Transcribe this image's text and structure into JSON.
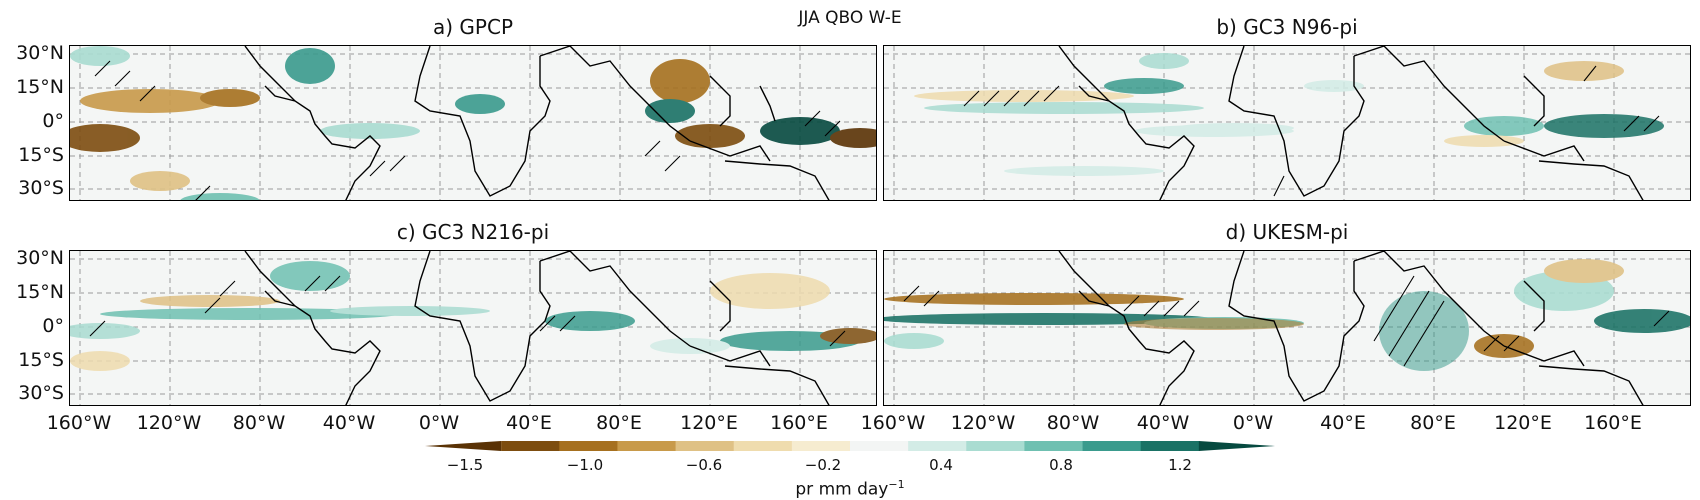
{
  "figure": {
    "suptitle": "JJA QBO W-E",
    "panels": [
      {
        "id": "a",
        "title": "a) GPCP"
      },
      {
        "id": "b",
        "title": "b) GC3 N96-pi"
      },
      {
        "id": "c",
        "title": "c) GC3 N216-pi"
      },
      {
        "id": "d",
        "title": "d) UKESM-pi"
      }
    ],
    "lat_labels": [
      "30°N",
      "15°N",
      "0°",
      "15°S",
      "30°S"
    ],
    "lon_labels": [
      "160°W",
      "120°W",
      "80°W",
      "40°W",
      "0°W",
      "40°E",
      "80°E",
      "120°E",
      "160°E"
    ],
    "colorbar": {
      "label": "pr mm day",
      "label_sup": "−1",
      "ticks": [
        "−1.5",
        "−1.0",
        "−0.6",
        "−0.2",
        "0.4",
        "0.8",
        "1.2"
      ],
      "colors": [
        "#5a3205",
        "#7d4d0f",
        "#a6701f",
        "#c89a4a",
        "#dfc185",
        "#efdcae",
        "#f6ecd0",
        "#f3f5f4",
        "#d3ece6",
        "#a9dcd1",
        "#6fc0b1",
        "#3a9b8d",
        "#1a7265",
        "#064a40"
      ]
    }
  }
}
